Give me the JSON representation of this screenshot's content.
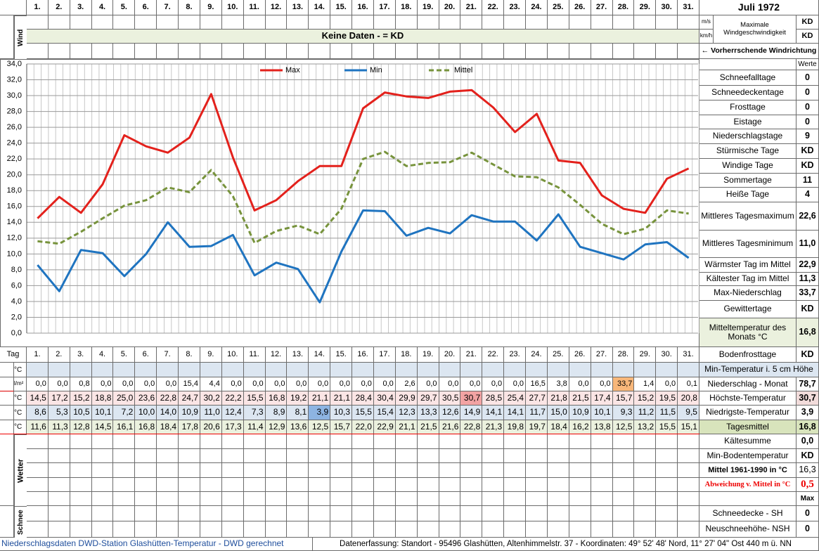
{
  "header": {
    "month": "Juli 1972",
    "tag_label": "Tag",
    "day_labels": [
      "1.",
      "2.",
      "3.",
      "4.",
      "5.",
      "6.",
      "7.",
      "8.",
      "9.",
      "10.",
      "11.",
      "12.",
      "13.",
      "14.",
      "15.",
      "16.",
      "17.",
      "18.",
      "19.",
      "20.",
      "21.",
      "22.",
      "23.",
      "24.",
      "25.",
      "26.",
      "27.",
      "28.",
      "29.",
      "30.",
      "31."
    ]
  },
  "wind": {
    "label": "Wind",
    "banner": "Keine Daten -  = KD",
    "units": [
      "m/s",
      "km/h"
    ],
    "max_label": "Maximale Windgeschwindigkeit",
    "values": [
      "KD",
      "KD"
    ],
    "direction": "← Vorherrschende Windrichtung"
  },
  "chart_data": {
    "type": "line",
    "categories": [
      "1.",
      "2.",
      "3.",
      "4.",
      "5.",
      "6.",
      "7.",
      "8.",
      "9.",
      "10.",
      "11.",
      "12.",
      "13.",
      "14.",
      "15.",
      "16.",
      "17.",
      "18.",
      "19.",
      "20.",
      "21.",
      "22.",
      "23.",
      "24.",
      "25.",
      "26.",
      "27.",
      "28.",
      "29.",
      "30.",
      "31."
    ],
    "ylim": [
      0,
      34
    ],
    "yticks": [
      {
        "value": 0,
        "label": "0,0"
      },
      {
        "value": 2,
        "label": "2,0"
      },
      {
        "value": 4,
        "label": "4,0"
      },
      {
        "value": 6,
        "label": "6,0"
      },
      {
        "value": 8,
        "label": "8,0"
      },
      {
        "value": 10,
        "label": "10,0"
      },
      {
        "value": 12,
        "label": "12,0"
      },
      {
        "value": 14,
        "label": "14,0"
      },
      {
        "value": 16,
        "label": "16,0"
      },
      {
        "value": 18,
        "label": "18,0"
      },
      {
        "value": 20,
        "label": "20,0"
      },
      {
        "value": 22,
        "label": "22,0"
      },
      {
        "value": 24,
        "label": "24,0"
      },
      {
        "value": 26,
        "label": "26,0"
      },
      {
        "value": 28,
        "label": "28,0"
      },
      {
        "value": 30,
        "label": "30,0"
      },
      {
        "value": 32,
        "label": "32,0"
      },
      {
        "value": 34,
        "label": "34,0"
      }
    ],
    "grid": true,
    "series": [
      {
        "name": "Max",
        "color": "#e3211c",
        "dashed": false,
        "values": [
          14.5,
          17.2,
          15.2,
          18.8,
          25.0,
          23.6,
          22.8,
          24.7,
          30.2,
          22.2,
          15.5,
          16.8,
          19.2,
          21.1,
          21.1,
          28.4,
          30.4,
          29.9,
          29.7,
          30.5,
          30.7,
          28.5,
          25.4,
          27.7,
          21.8,
          21.5,
          17.4,
          15.7,
          15.2,
          19.5,
          20.8
        ],
        "value_labels": [
          "14,5",
          "17,2",
          "15,2",
          "18,8",
          "25,0",
          "23,6",
          "22,8",
          "24,7",
          "30,2",
          "22,2",
          "15,5",
          "16,8",
          "19,2",
          "21,1",
          "21,1",
          "28,4",
          "30,4",
          "29,9",
          "29,7",
          "30,5",
          "30,7",
          "28,5",
          "25,4",
          "27,7",
          "21,8",
          "21,5",
          "17,4",
          "15,7",
          "15,2",
          "19,5",
          "20,8"
        ]
      },
      {
        "name": "Min",
        "color": "#1f74c0",
        "dashed": false,
        "values": [
          8.6,
          5.3,
          10.5,
          10.1,
          7.2,
          10.0,
          14.0,
          10.9,
          11.0,
          12.4,
          7.3,
          8.9,
          8.1,
          3.9,
          10.3,
          15.5,
          15.4,
          12.3,
          13.3,
          12.6,
          14.9,
          14.1,
          14.1,
          11.7,
          15.0,
          10.9,
          10.1,
          9.3,
          11.2,
          11.5,
          9.5
        ],
        "value_labels": [
          "8,6",
          "5,3",
          "10,5",
          "10,1",
          "7,2",
          "10,0",
          "14,0",
          "10,9",
          "11,0",
          "12,4",
          "7,3",
          "8,9",
          "8,1",
          "3,9",
          "10,3",
          "15,5",
          "15,4",
          "12,3",
          "13,3",
          "12,6",
          "14,9",
          "14,1",
          "14,1",
          "11,7",
          "15,0",
          "10,9",
          "10,1",
          "9,3",
          "11,2",
          "11,5",
          "9,5"
        ]
      },
      {
        "name": "Mittel",
        "color": "#77933c",
        "dashed": true,
        "values": [
          11.6,
          11.3,
          12.8,
          14.5,
          16.1,
          16.8,
          18.4,
          17.8,
          20.6,
          17.3,
          11.4,
          12.9,
          13.6,
          12.5,
          15.7,
          22.0,
          22.9,
          21.1,
          21.5,
          21.6,
          22.8,
          21.3,
          19.8,
          19.7,
          18.4,
          16.2,
          13.8,
          12.5,
          13.2,
          15.5,
          15.1
        ],
        "value_labels": [
          "11,6",
          "11,3",
          "12,8",
          "14,5",
          "16,1",
          "16,8",
          "18,4",
          "17,8",
          "20,6",
          "17,3",
          "11,4",
          "12,9",
          "13,6",
          "12,5",
          "15,7",
          "22,0",
          "22,9",
          "21,1",
          "21,5",
          "21,6",
          "22,8",
          "21,3",
          "19,8",
          "19,7",
          "18,4",
          "16,2",
          "13,8",
          "12,5",
          "13,2",
          "15,5",
          "15,1"
        ]
      }
    ]
  },
  "daily_table": {
    "units": [
      "°C",
      "l/m²",
      "°C",
      "°C",
      "°C"
    ],
    "precipitation": [
      "0,0",
      "0,0",
      "0,8",
      "0,0",
      "0,0",
      "0,0",
      "0,0",
      "15,4",
      "4,4",
      "0,0",
      "0,0",
      "0,0",
      "0,0",
      "0,0",
      "0,0",
      "0,0",
      "0,0",
      "2,6",
      "0,0",
      "0,0",
      "0,0",
      "0,0",
      "0,0",
      "16,5",
      "3,8",
      "0,0",
      "0,0",
      "33,7",
      "1,4",
      "0,0",
      "0,1"
    ]
  },
  "summary": {
    "values_header": "Werte",
    "rows": [
      {
        "label": "Schneefalltage",
        "value": "0"
      },
      {
        "label": "Schneedeckentage",
        "value": "0"
      },
      {
        "label": "Frosttage",
        "value": "0"
      },
      {
        "label": "Eistage",
        "value": "0"
      },
      {
        "label": "Niederschlagstage",
        "value": "9"
      },
      {
        "label": "Stürmische Tage",
        "value": "KD"
      },
      {
        "label": "Windige Tage",
        "value": "KD"
      },
      {
        "label": "Sommertage",
        "value": "11"
      },
      {
        "label": "Heiße Tage",
        "value": "4"
      },
      {
        "label": "Mittleres Tagesmaximum",
        "value": "22,6"
      },
      {
        "label": "Mittleres Tagesminimum",
        "value": "11,0"
      },
      {
        "label": "Wärmster Tag im Mittel",
        "value": "22,9"
      },
      {
        "label": "Kältester Tag im Mittel",
        "value": "11,3"
      },
      {
        "label": "Max-Niederschlag",
        "value": "33,7"
      },
      {
        "label": "Gewittertage",
        "value": "KD"
      },
      {
        "label": "Mitteltemperatur des Monats °C",
        "value": "16,8"
      },
      {
        "label": "Bodenfrosttage",
        "value": "KD"
      },
      {
        "label": "Min-Temperatur i. 5 cm Höhe"
      },
      {
        "label": "Niederschlag - Monat",
        "value": "78,7"
      },
      {
        "label": "Höchste-Temperatur",
        "value": "30,7"
      },
      {
        "label": "Niedrigste-Temperatur",
        "value": "3,9"
      },
      {
        "label": "Tagesmittel",
        "value": "16,8"
      },
      {
        "label": "Kältesumme",
        "value": "0,0"
      },
      {
        "label": "Min-Bodentemperatur",
        "value": "KD"
      },
      {
        "label": "Mittel 1961-1990 in °C",
        "value": "16,3"
      },
      {
        "label": "Abweichung v. Mittel in °C",
        "value": "0,5"
      },
      {
        "value": "Max"
      },
      {
        "label": "Schneedecke -  SH",
        "value": "0"
      },
      {
        "label": "Neuschneehöhe- NSH",
        "value": "0"
      }
    ]
  },
  "lower_labels": {
    "weather": "Wetter",
    "snow": "Schnee"
  },
  "footer": {
    "left": "Niederschlagsdaten DWD-Station Glashütten-Temperatur -  DWD gerechnet",
    "right": "Datenerfassung:  Standort -  95496  Glashütten, Altenhimmelstr. 37 - Koordinaten:  49° 52' 48' Nord,   11° 27' 04\" Ost   440 m ü. NN"
  }
}
